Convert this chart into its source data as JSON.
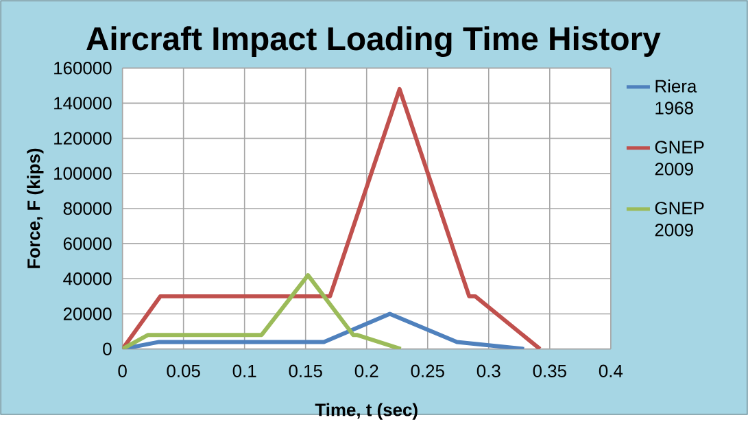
{
  "chart_data": {
    "type": "line",
    "title": "Aircraft Impact Loading Time History",
    "xlabel": "Time, t (sec)",
    "ylabel": "Force, F (kips)",
    "xlim": [
      0,
      0.4
    ],
    "xticks": [
      0,
      0.05,
      0.1,
      0.15,
      0.2,
      0.25,
      0.3,
      0.35,
      0.4
    ],
    "ylim": [
      0,
      160000
    ],
    "yticks": [
      0,
      20000,
      40000,
      60000,
      80000,
      100000,
      120000,
      140000,
      160000
    ],
    "grid": true,
    "legend": "right",
    "marker": "none",
    "line_style": "solid",
    "series": [
      {
        "name": "Riera 1968",
        "color": "#4f81bd",
        "x": [
          0,
          0.03,
          0.165,
          0.219,
          0.274,
          0.329
        ],
        "values": [
          0,
          4000,
          4000,
          20000,
          4000,
          0
        ]
      },
      {
        "name": "GNEP 2009",
        "color": "#c0504d",
        "x": [
          0,
          0.031,
          0.17,
          0.227,
          0.284,
          0.289,
          0.342
        ],
        "values": [
          0,
          30000,
          30000,
          148000,
          30000,
          30000,
          0
        ]
      },
      {
        "name": "GNEP 2009",
        "color": "#9bbb59",
        "x": [
          0,
          0.021,
          0.114,
          0.152,
          0.189,
          0.192,
          0.228
        ],
        "values": [
          0,
          8000,
          8000,
          42000,
          8000,
          8000,
          0
        ]
      }
    ]
  }
}
